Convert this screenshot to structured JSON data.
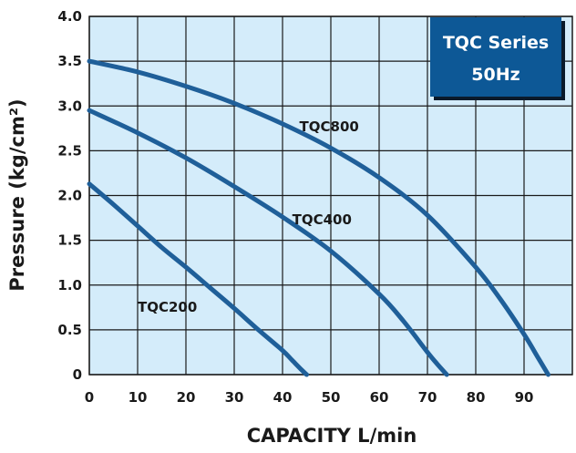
{
  "chart_data": {
    "type": "line",
    "title": "",
    "badge": {
      "line1": "TQC Series",
      "line2": "50Hz"
    },
    "xlabel": "CAPACITY L/min",
    "ylabel": "Pressure (kg/cm²)",
    "xlim": [
      0,
      100
    ],
    "ylim": [
      0,
      4.0
    ],
    "xticks": [
      0,
      10,
      20,
      30,
      40,
      50,
      60,
      70,
      80,
      90
    ],
    "xtick_labels": [
      "0",
      "10",
      "20",
      "30",
      "40",
      "50",
      "60",
      "70",
      "80",
      "90"
    ],
    "yticks": [
      0,
      0.5,
      1.0,
      1.5,
      2.0,
      2.5,
      3.0,
      3.5,
      4.0
    ],
    "ytick_labels": [
      "0",
      "0.5",
      "1.0",
      "1.5",
      "2.0",
      "2.5",
      "3.0",
      "3.5",
      "4.0"
    ],
    "grid": true,
    "colors": {
      "plot_bg": "#d4ecfa",
      "grid": "#1a1a1a",
      "curve": "#1f5f99",
      "badge_bg": "#0d5896"
    },
    "series": [
      {
        "name": "TQC200",
        "label_at": [
          10,
          0.7
        ],
        "x": [
          0,
          5,
          10,
          15,
          20,
          25,
          30,
          35,
          40,
          42,
          44,
          45
        ],
        "y": [
          2.13,
          1.9,
          1.66,
          1.42,
          1.2,
          0.97,
          0.74,
          0.5,
          0.27,
          0.16,
          0.05,
          0
        ]
      },
      {
        "name": "TQC400",
        "label_at": [
          42,
          1.68
        ],
        "x": [
          0,
          10,
          20,
          30,
          40,
          50,
          60,
          65,
          70,
          72,
          74
        ],
        "y": [
          2.95,
          2.7,
          2.42,
          2.1,
          1.76,
          1.38,
          0.9,
          0.6,
          0.25,
          0.12,
          0
        ]
      },
      {
        "name": "TQC800",
        "label_at": [
          43.5,
          2.72
        ],
        "x": [
          0,
          10,
          20,
          30,
          40,
          50,
          60,
          70,
          80,
          85,
          90,
          93,
          95
        ],
        "y": [
          3.5,
          3.38,
          3.22,
          3.03,
          2.8,
          2.53,
          2.2,
          1.78,
          1.2,
          0.85,
          0.45,
          0.18,
          0
        ]
      }
    ]
  }
}
